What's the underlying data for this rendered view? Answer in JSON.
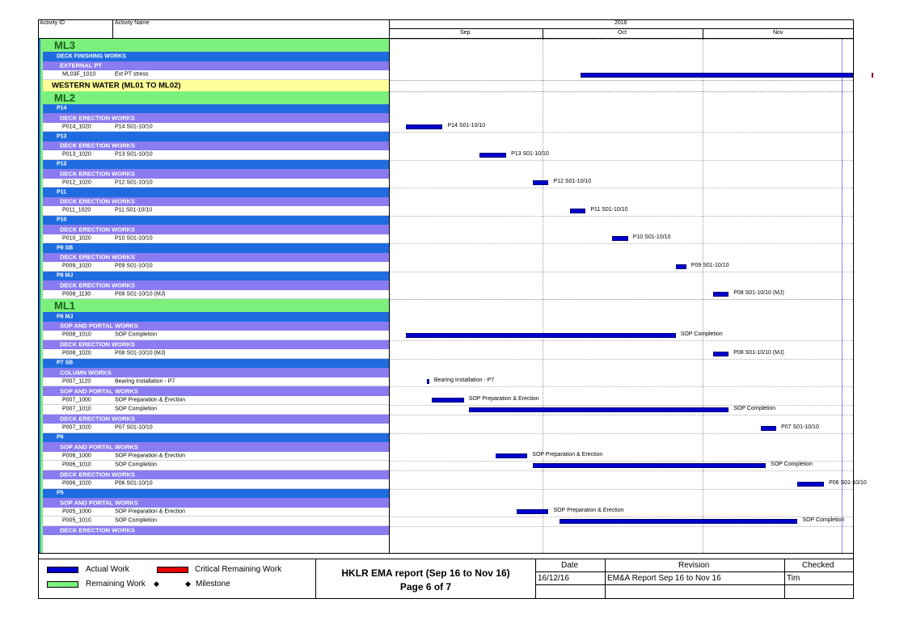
{
  "header": {
    "col_activity_id": "Activity ID",
    "col_activity_name": "Activity Name",
    "year": "2016",
    "months": [
      "Sep",
      "Oct",
      "Nov"
    ]
  },
  "colors": {
    "actual": "#0000CC",
    "critical": "#E00000",
    "remaining": "#7CF07C",
    "level1": "#7CF07C",
    "level2": "#1E6CE0",
    "level3": "#8A7CF0",
    "highlight": "#FFFF99"
  },
  "rows": [
    {
      "type": "g1",
      "label": "ML3"
    },
    {
      "type": "g2",
      "label": "DECK FINISHING WORKS"
    },
    {
      "type": "g3",
      "label": "EXTERNAL PT"
    },
    {
      "type": "act",
      "id": "ML03F_1010",
      "name": "Ext PT stress"
    },
    {
      "type": "g1y",
      "label": "WESTERN WATER (ML01 TO ML02)"
    },
    {
      "type": "g1",
      "label": "ML2"
    },
    {
      "type": "g2",
      "label": "P14"
    },
    {
      "type": "g3",
      "label": "DECK ERECTION WORKS"
    },
    {
      "type": "act",
      "id": "P014_1020",
      "name": "P14 S01-10/10"
    },
    {
      "type": "g2",
      "label": "P13"
    },
    {
      "type": "g3",
      "label": "DECK ERECTION WORKS"
    },
    {
      "type": "act",
      "id": "P013_1020",
      "name": "P13 S01-10/10"
    },
    {
      "type": "g2",
      "label": "P12"
    },
    {
      "type": "g3",
      "label": "DECK ERECTION WORKS"
    },
    {
      "type": "act",
      "id": "P012_1020",
      "name": "P12 S01-10/10"
    },
    {
      "type": "g2",
      "label": "P11"
    },
    {
      "type": "g3",
      "label": "DECK ERECTION WORKS"
    },
    {
      "type": "act",
      "id": "P011_1020",
      "name": "P11 S01-10/10"
    },
    {
      "type": "g2",
      "label": "P10"
    },
    {
      "type": "g3",
      "label": "DECK ERECTION WORKS"
    },
    {
      "type": "act",
      "id": "P010_1020",
      "name": "P10 S01-10/10"
    },
    {
      "type": "g2",
      "label": "P9 SB"
    },
    {
      "type": "g3",
      "label": "DECK ERECTION WORKS"
    },
    {
      "type": "act",
      "id": "P009_1020",
      "name": "P09 S01-10/10"
    },
    {
      "type": "g2",
      "label": "P8 MJ"
    },
    {
      "type": "g3",
      "label": "DECK ERECTION WORKS"
    },
    {
      "type": "act",
      "id": "P008_1130",
      "name": "P08 S01-10/10 (MJ)"
    },
    {
      "type": "g1",
      "label": "ML1"
    },
    {
      "type": "g2",
      "label": "P8 MJ"
    },
    {
      "type": "g3",
      "label": "SOP AND PORTAL WORKS"
    },
    {
      "type": "act",
      "id": "P008_1010",
      "name": "SOP Completion"
    },
    {
      "type": "g3",
      "label": "DECK ERECTION WORKS"
    },
    {
      "type": "act",
      "id": "P008_1020",
      "name": "P08 S01-10/10 (MJ)"
    },
    {
      "type": "g2",
      "label": "P7 SB"
    },
    {
      "type": "g3",
      "label": "COLUMN WORKS"
    },
    {
      "type": "act",
      "id": "P007_1120",
      "name": "Bearing Installation - P7"
    },
    {
      "type": "g3",
      "label": "SOP AND PORTAL WORKS"
    },
    {
      "type": "act",
      "id": "P007_1000",
      "name": "SOP Preparation & Erection"
    },
    {
      "type": "act",
      "id": "P007_1010",
      "name": "SOP Completion"
    },
    {
      "type": "g3",
      "label": "DECK ERECTION WORKS"
    },
    {
      "type": "act",
      "id": "P007_1020",
      "name": "P07 S01-10/10"
    },
    {
      "type": "g2",
      "label": "P6"
    },
    {
      "type": "g3",
      "label": "SOP AND PORTAL WORKS"
    },
    {
      "type": "act",
      "id": "P006_1000",
      "name": "SOP Preparation & Erection"
    },
    {
      "type": "act",
      "id": "P006_1010",
      "name": "SOP Completion"
    },
    {
      "type": "g3",
      "label": "DECK ERECTION WORKS"
    },
    {
      "type": "act",
      "id": "P006_1020",
      "name": "P06 S01-10/10"
    },
    {
      "type": "g2",
      "label": "P5"
    },
    {
      "type": "g3",
      "label": "SOP AND PORTAL WORKS"
    },
    {
      "type": "act",
      "id": "P005_1000",
      "name": "SOP Preparation & Erection"
    },
    {
      "type": "act",
      "id": "P005_1010",
      "name": "SOP Completion"
    },
    {
      "type": "g3",
      "label": "DECK ERECTION WORKS"
    }
  ],
  "bars": [
    {
      "row": 3,
      "start": "2016-10-06",
      "end": "2016-11-30",
      "label": ""
    },
    {
      "row": 3,
      "start": "2016-11-30",
      "end": "2016-12-01",
      "label": "",
      "critical": true
    },
    {
      "row": 8,
      "start": "2016-09-03",
      "end": "2016-09-10",
      "label": "P14 S01-10/10"
    },
    {
      "row": 11,
      "start": "2016-09-17",
      "end": "2016-09-22",
      "label": "P13 S01-10/10"
    },
    {
      "row": 14,
      "start": "2016-09-27",
      "end": "2016-09-30",
      "label": "P12 S01-10/10"
    },
    {
      "row": 17,
      "start": "2016-10-04",
      "end": "2016-10-07",
      "label": "P11 S01-10/10"
    },
    {
      "row": 20,
      "start": "2016-10-12",
      "end": "2016-10-15",
      "label": "P10 S01-10/10"
    },
    {
      "row": 23,
      "start": "2016-10-24",
      "end": "2016-10-26",
      "label": "P09 S01-10/10"
    },
    {
      "row": 26,
      "start": "2016-10-31",
      "end": "2016-11-03",
      "label": "P08 S01-10/10 (MJ)"
    },
    {
      "row": 30,
      "start": "2016-09-03",
      "end": "2016-10-24",
      "label": "SOP Completion"
    },
    {
      "row": 32,
      "start": "2016-10-31",
      "end": "2016-11-03",
      "label": "P08 S01-10/10 (MJ)"
    },
    {
      "row": 35,
      "start": "2016-09-07",
      "end": "2016-09-07",
      "label": "Bearing Installation - P7"
    },
    {
      "row": 37,
      "start": "2016-09-08",
      "end": "2016-09-14",
      "label": "SOP Preparation & Erection"
    },
    {
      "row": 38,
      "start": "2016-09-15",
      "end": "2016-11-03",
      "label": "SOP Completion"
    },
    {
      "row": 40,
      "start": "2016-11-09",
      "end": "2016-11-12",
      "label": "P07 S01-10/10"
    },
    {
      "row": 43,
      "start": "2016-09-20",
      "end": "2016-09-26",
      "label": "SOP Preparation & Erection"
    },
    {
      "row": 44,
      "start": "2016-09-27",
      "end": "2016-11-10",
      "label": "SOP Completion"
    },
    {
      "row": 46,
      "start": "2016-11-16",
      "end": "2016-11-21",
      "label": "P06 S01-10/10"
    },
    {
      "row": 49,
      "start": "2016-09-24",
      "end": "2016-09-30",
      "label": "SOP Preparation & Erection"
    },
    {
      "row": 50,
      "start": "2016-10-02",
      "end": "2016-11-16",
      "label": "SOP Completion"
    }
  ],
  "legend": {
    "actual_work": "Actual Work",
    "critical_remaining_work": "Critical Remaining Work",
    "remaining_work": "Remaining Work",
    "milestone_glyph": "◆",
    "milestone": "Milestone"
  },
  "title_block": {
    "title": "HKLR EMA report (Sep 16 to Nov 16)",
    "page": "Page 6 of 7",
    "date_header": "Date",
    "revision_header": "Revision",
    "checked_header": "Checked",
    "date_value": "16/12/16",
    "revision_value": "EM&A Report Sep 16 to Nov 16",
    "checked_value": "Tim"
  }
}
